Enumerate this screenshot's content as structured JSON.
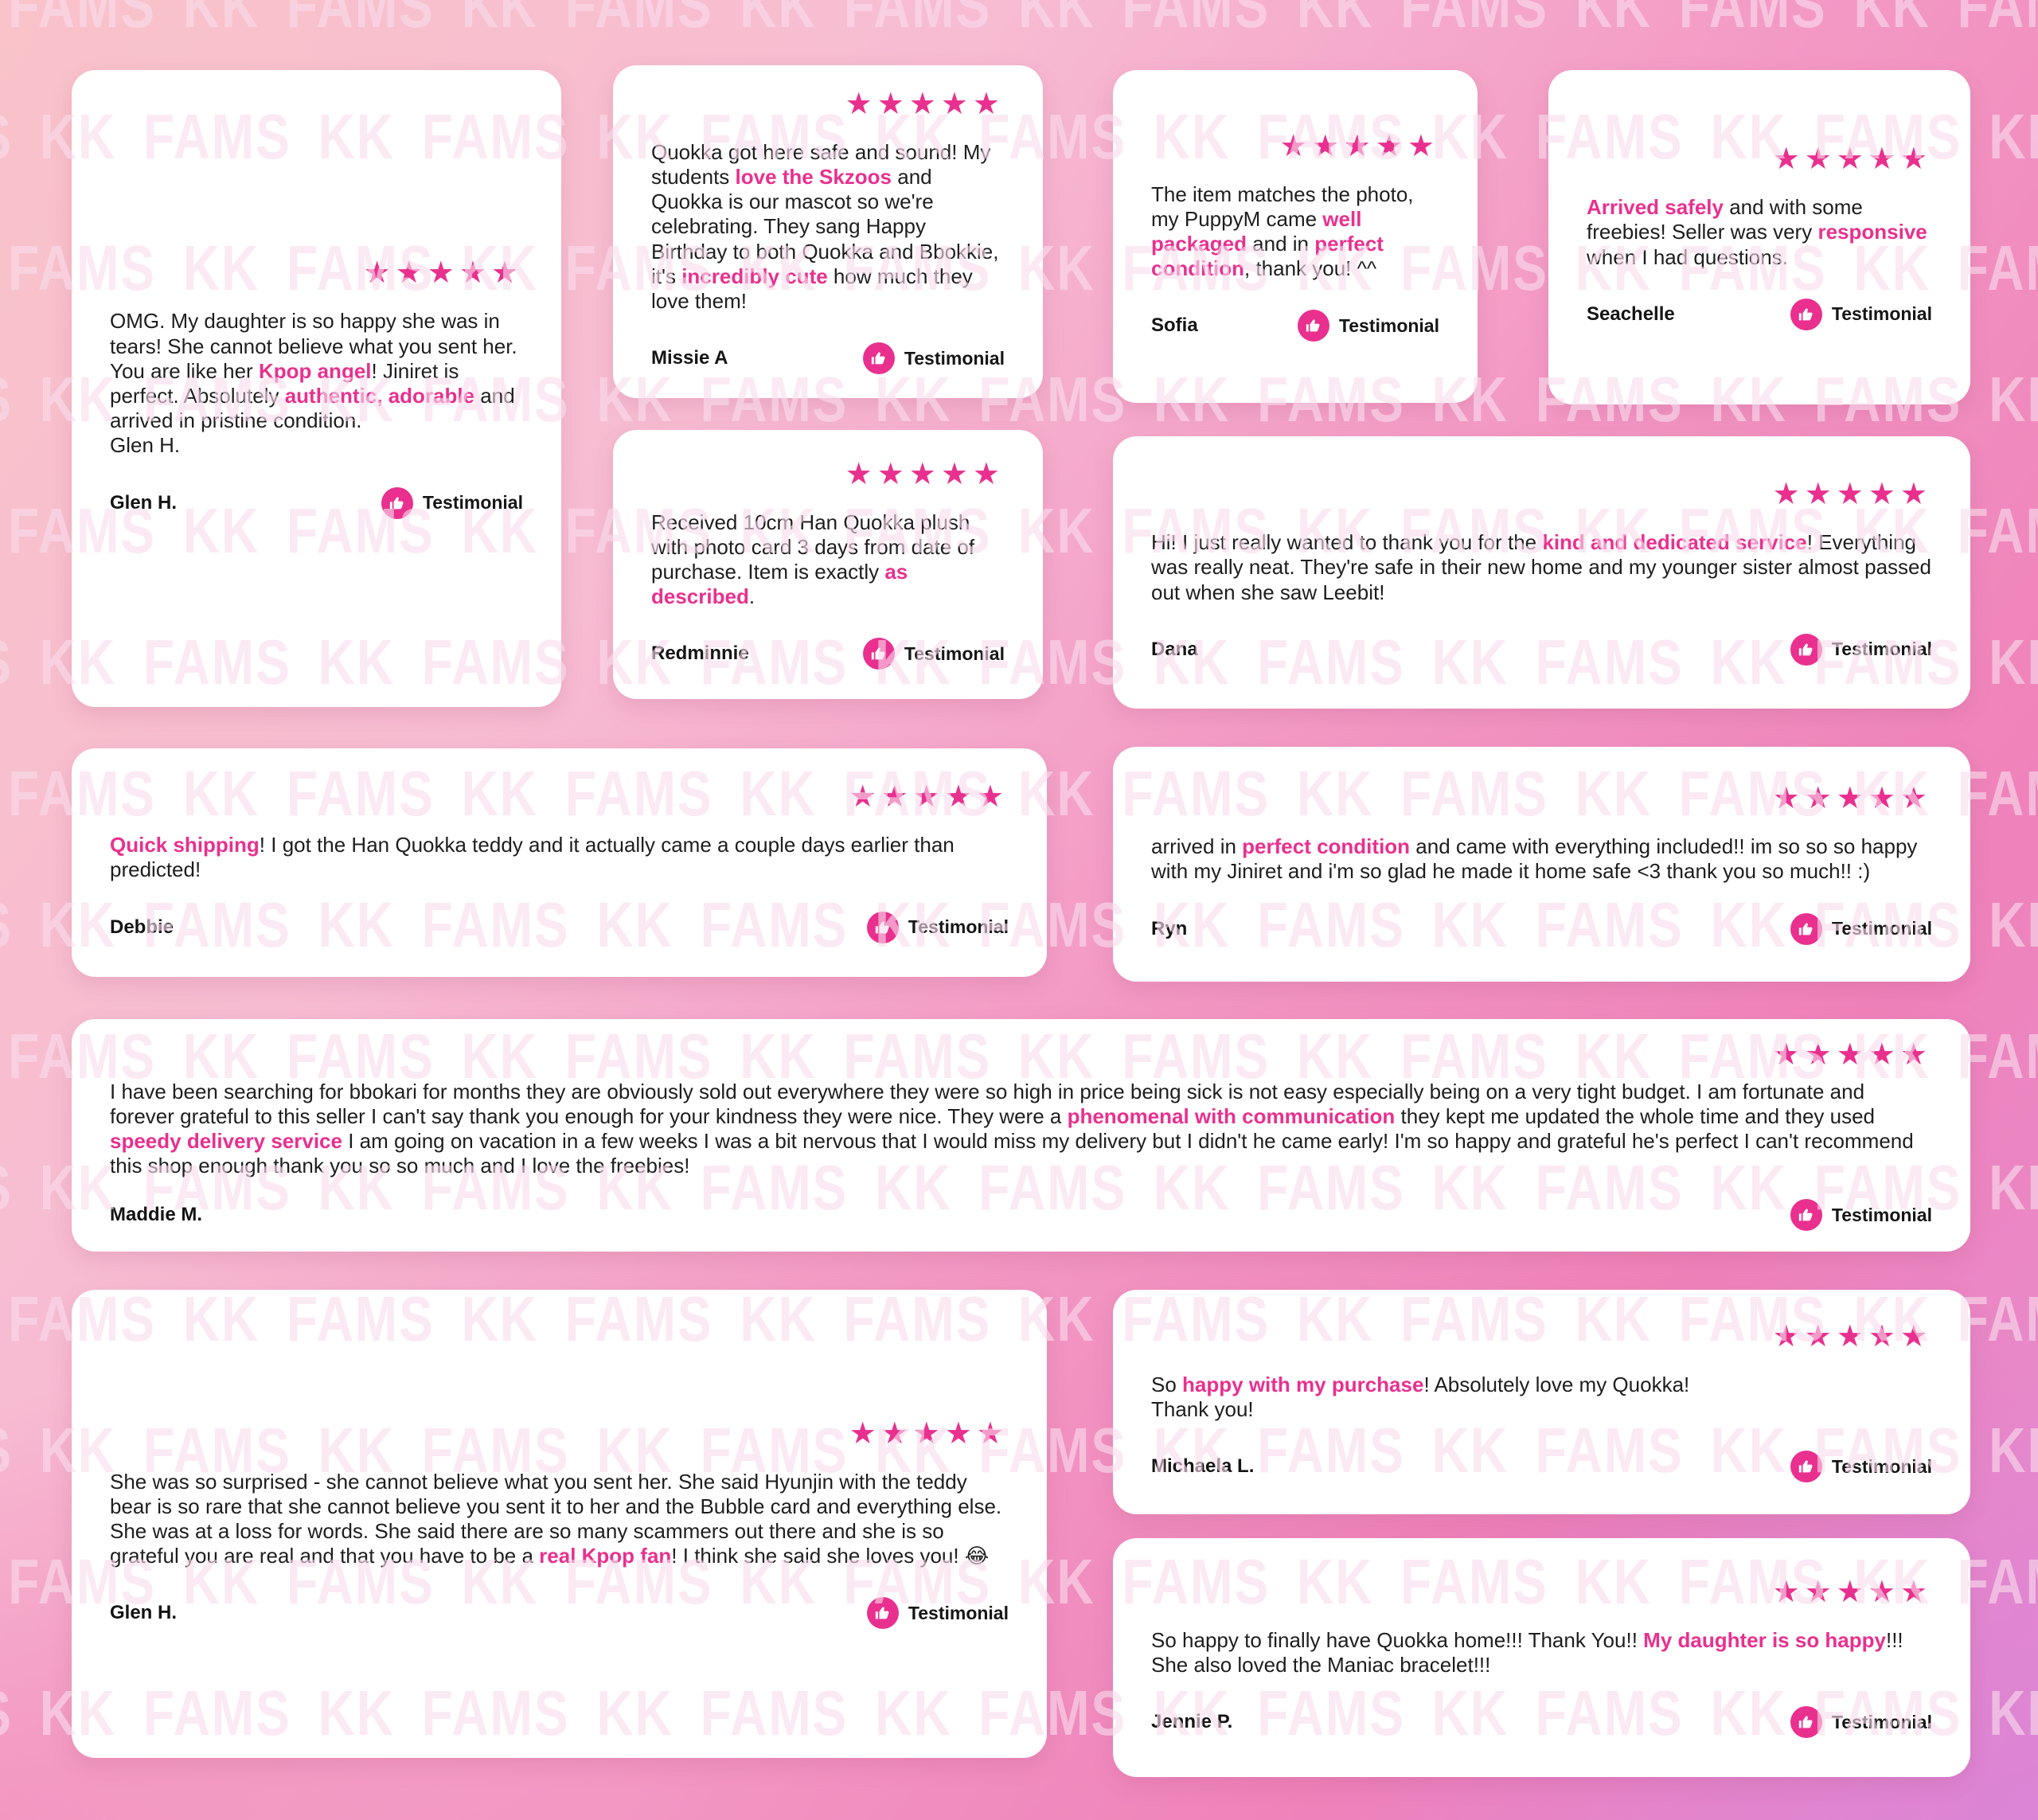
{
  "theme": {
    "accent": "#E9308F",
    "text_color": "#1E1E1E",
    "card_background": "#FFFFFF",
    "background_top_left": "#F9C3C9",
    "background_top_right": "#F7C4DD",
    "background_bottom_left": "#F07EB4",
    "background_bottom_right": "#E18CD9",
    "star_color": "#E9308F"
  },
  "watermark": {
    "text": "KK FAMS"
  },
  "badge": {
    "label": "Testimonial",
    "icon": "thumbs-up-icon"
  },
  "star_glyph": "★",
  "cards": [
    {
      "author": "Glen H.",
      "rating": 5,
      "segments": [
        {
          "text": "OMG. My daughter is so happy she was in tears! She cannot believe what you sent her. You are like her "
        },
        {
          "text": "Kpop angel",
          "highlight": true
        },
        {
          "text": "! Jiniret is perfect. Absolutely "
        },
        {
          "text": "authentic, adorable",
          "highlight": true
        },
        {
          "text": " and arrived in pristine condition.\nGlen H."
        }
      ]
    },
    {
      "author": "Missie A",
      "rating": 5,
      "segments": [
        {
          "text": "Quokka got here safe and sound! My students "
        },
        {
          "text": "love the Skzoos",
          "highlight": true
        },
        {
          "text": " and Quokka is our mascot so we're celebrating. They sang Happy Birthday to both Quokka and Bbokkie, it's "
        },
        {
          "text": "incredibly cute",
          "highlight": true
        },
        {
          "text": " how much they love them!"
        }
      ]
    },
    {
      "author": "Sofia",
      "rating": 5,
      "segments": [
        {
          "text": "The item matches the photo, my PuppyM came "
        },
        {
          "text": "well packaged",
          "highlight": true
        },
        {
          "text": " and in "
        },
        {
          "text": "perfect condition",
          "highlight": true
        },
        {
          "text": ", thank you! ^^"
        }
      ]
    },
    {
      "author": "Seachelle",
      "rating": 5,
      "segments": [
        {
          "text": "Arrived safely",
          "highlight": true
        },
        {
          "text": " and with some freebies! Seller was very "
        },
        {
          "text": "responsive",
          "highlight": true
        },
        {
          "text": " when I had questions."
        }
      ]
    },
    {
      "author": "Redminnie",
      "rating": 5,
      "segments": [
        {
          "text": "Received 10cm Han Quokka plush with photo card 3 days from date of purchase. Item is exactly "
        },
        {
          "text": "as described",
          "highlight": true
        },
        {
          "text": "."
        }
      ]
    },
    {
      "author": "Dana",
      "rating": 5,
      "segments": [
        {
          "text": "Hi! I just really wanted to thank you for the "
        },
        {
          "text": "kind and dedicated service",
          "highlight": true
        },
        {
          "text": "! Everything was really neat. They're safe in their new home and my younger sister almost passed out when she saw Leebit!"
        }
      ]
    },
    {
      "author": "Debbie",
      "rating": 5,
      "segments": [
        {
          "text": "Quick shipping",
          "highlight": true
        },
        {
          "text": "! I got the Han Quokka teddy and it actually came a couple days earlier than predicted!"
        }
      ]
    },
    {
      "author": "Ryn",
      "rating": 5,
      "segments": [
        {
          "text": "arrived in "
        },
        {
          "text": "perfect condition",
          "highlight": true
        },
        {
          "text": " and came with everything included!! im so so so happy with my Jiniret and i'm so glad he made it home safe <3 thank you so much!! :)"
        }
      ]
    },
    {
      "author": "Maddie M.",
      "rating": 5,
      "segments": [
        {
          "text": "I have been searching for bbokari for months they are obviously sold out everywhere they were so high in price being sick is not easy especially being on a very tight budget. I am fortunate and forever grateful to this seller I can't say thank you enough for your kindness they were nice. They were a "
        },
        {
          "text": "phenomenal with communication",
          "highlight": true
        },
        {
          "text": " they kept me updated the whole time and they used "
        },
        {
          "text": "speedy delivery service",
          "highlight": true
        },
        {
          "text": " I am going on vacation in a few weeks I was a bit nervous that I would miss my delivery but I didn't he came early! I'm so happy and grateful he's perfect I can't recommend this shop enough thank you so so much and I love the freebies!"
        }
      ]
    },
    {
      "author": "Glen H.",
      "rating": 5,
      "segments": [
        {
          "text": "She was so surprised - she cannot believe what you sent her. She said Hyunjin with the teddy bear is so rare that she cannot believe you sent it to her and the Bubble card and everything else. She was at a loss for words. She said there are so many scammers out there and she is so grateful you are real and that you have to be a "
        },
        {
          "text": "real Kpop fan",
          "highlight": true
        },
        {
          "text": "! I think she said she loves you! 😂"
        }
      ]
    },
    {
      "author": "Michaela L.",
      "rating": 5,
      "segments": [
        {
          "text": "So "
        },
        {
          "text": "happy with my purchase",
          "highlight": true
        },
        {
          "text": "! Absolutely love my Quokka!\nThank you!"
        }
      ]
    },
    {
      "author": "Jennie P.",
      "rating": 5,
      "segments": [
        {
          "text": "So happy to finally have Quokka home!!! Thank You!! "
        },
        {
          "text": "My daughter is so happy",
          "highlight": true
        },
        {
          "text": "!!! She also loved the Maniac bracelet!!!"
        }
      ]
    }
  ]
}
